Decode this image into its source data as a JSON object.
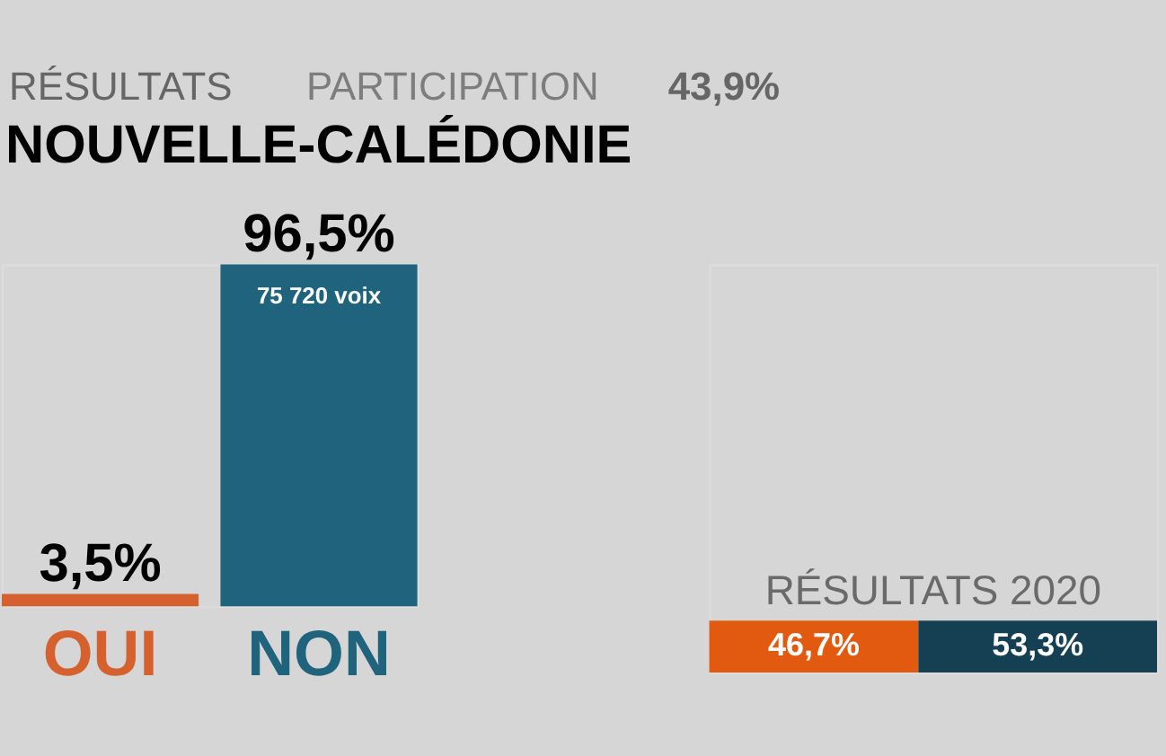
{
  "chart_data": [
    {
      "type": "bar",
      "title": "NOUVELLE-CALÉDONIE",
      "annotations": [
        "RÉSULTATS",
        "PARTICIPATION",
        "43,9%",
        {
          "text": "75 720 voix",
          "x": "NON",
          "y": 96.5
        }
      ],
      "categories": [
        "OUI",
        "NON"
      ],
      "values": [
        3.5,
        96.5
      ],
      "colors": [
        "#d4612e",
        "#1f637d"
      ],
      "value_labels": [
        "3,5%",
        "96,5%"
      ],
      "tick_labels": "x"
    },
    {
      "type": "bar",
      "title": "RÉSULTATS 2020",
      "orientation": "horizontal",
      "stacked": true,
      "categories": [
        null
      ],
      "series": [
        {
          "color": "#e25a10",
          "values": [
            46.7
          ],
          "value_labels": [
            "46,7%"
          ]
        },
        {
          "color": "#153f52",
          "values": [
            53.3
          ],
          "value_labels": [
            "53,3%"
          ]
        }
      ],
      "tick_labels": false
    }
  ]
}
